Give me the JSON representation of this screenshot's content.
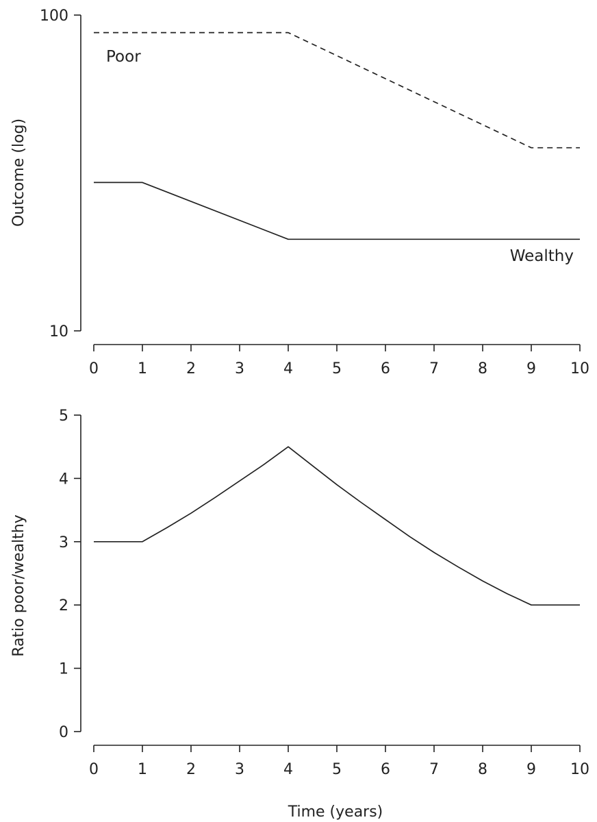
{
  "chart_data": [
    {
      "type": "line",
      "xlabel": "",
      "ylabel": "Outcome (log)",
      "yscale": "log",
      "ylim": [
        10,
        100
      ],
      "xlim": [
        0,
        10
      ],
      "yticks": [
        10,
        100
      ],
      "xticks": [
        0,
        1,
        2,
        3,
        4,
        5,
        6,
        7,
        8,
        9,
        10
      ],
      "grid": false,
      "series": [
        {
          "name": "Poor",
          "style": "dashed",
          "x": [
            0,
            4,
            9,
            10
          ],
          "y": [
            88,
            88,
            38,
            38
          ]
        },
        {
          "name": "Wealthy",
          "style": "solid",
          "x": [
            0,
            1,
            4,
            10
          ],
          "y": [
            29.5,
            29.5,
            19.5,
            19.5
          ]
        }
      ]
    },
    {
      "type": "line",
      "xlabel": "Time (years)",
      "ylabel": "Ratio poor/wealthy",
      "ylim": [
        0,
        5
      ],
      "xlim": [
        0,
        10
      ],
      "yticks": [
        0,
        1,
        2,
        3,
        4,
        5
      ],
      "xticks": [
        0,
        1,
        2,
        3,
        4,
        5,
        6,
        7,
        8,
        9,
        10
      ],
      "grid": false,
      "series": [
        {
          "style": "solid",
          "x": [
            0,
            1,
            1.5,
            2,
            2.5,
            3,
            3.5,
            4,
            4.5,
            5,
            5.5,
            6,
            6.5,
            7,
            7.5,
            8,
            8.5,
            9,
            10
          ],
          "y": [
            3.0,
            3.0,
            3.22,
            3.45,
            3.7,
            3.96,
            4.22,
            4.5,
            4.2,
            3.9,
            3.62,
            3.35,
            3.08,
            2.83,
            2.6,
            2.38,
            2.18,
            2.0,
            2.0
          ]
        }
      ]
    }
  ]
}
